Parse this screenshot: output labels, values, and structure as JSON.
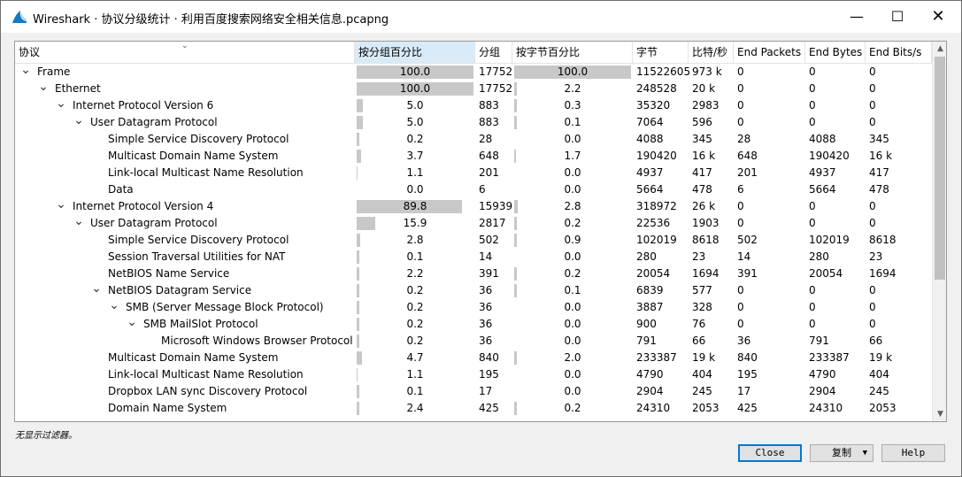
{
  "window": {
    "title": "Wireshark · 协议分级统计 · 利用百度搜索网络安全相关信息.pcapng",
    "controls": {
      "minimize": "—",
      "maximize": "☐",
      "close": "✕"
    }
  },
  "columns": [
    "协议",
    "按分组百分比",
    "分组",
    "按字节百分比",
    "字节",
    "比特/秒",
    "End Packets",
    "End Bytes",
    "End Bits/s"
  ],
  "sorted_column": "按分组百分比",
  "rows": [
    {
      "name": "Frame",
      "level": 0,
      "expander": "expanded",
      "pct_packets": "100.0",
      "pct_packets_value": 100,
      "packets": "17752",
      "pct_bytes": "100.0",
      "pct_bytes_value": 100,
      "bytes": "11522605",
      "bits_s": "973 k",
      "end_packets": "0",
      "end_bytes": "0",
      "end_bits_s": "0"
    },
    {
      "name": "Ethernet",
      "level": 1,
      "expander": "expanded",
      "pct_packets": "100.0",
      "pct_packets_value": 100,
      "packets": "17752",
      "pct_bytes": "2.2",
      "pct_bytes_value": 2.2,
      "bytes": "248528",
      "bits_s": "20 k",
      "end_packets": "0",
      "end_bytes": "0",
      "end_bits_s": "0"
    },
    {
      "name": "Internet Protocol Version 6",
      "level": 2,
      "expander": "expanded",
      "pct_packets": "5.0",
      "pct_packets_value": 5.0,
      "packets": "883",
      "pct_bytes": "0.3",
      "pct_bytes_value": 0.3,
      "bytes": "35320",
      "bits_s": "2983",
      "end_packets": "0",
      "end_bytes": "0",
      "end_bits_s": "0"
    },
    {
      "name": "User Datagram Protocol",
      "level": 3,
      "expander": "expanded",
      "pct_packets": "5.0",
      "pct_packets_value": 5.0,
      "packets": "883",
      "pct_bytes": "0.1",
      "pct_bytes_value": 0.1,
      "bytes": "7064",
      "bits_s": "596",
      "end_packets": "0",
      "end_bytes": "0",
      "end_bits_s": "0"
    },
    {
      "name": "Simple Service Discovery Protocol",
      "level": 4,
      "expander": "none",
      "pct_packets": "0.2",
      "pct_packets_value": 0.2,
      "packets": "28",
      "pct_bytes": "0.0",
      "pct_bytes_value": 0.0,
      "bytes": "4088",
      "bits_s": "345",
      "end_packets": "28",
      "end_bytes": "4088",
      "end_bits_s": "345"
    },
    {
      "name": "Multicast Domain Name System",
      "level": 4,
      "expander": "none",
      "pct_packets": "3.7",
      "pct_packets_value": 3.7,
      "packets": "648",
      "pct_bytes": "1.7",
      "pct_bytes_value": 1.7,
      "bytes": "190420",
      "bits_s": "16 k",
      "end_packets": "648",
      "end_bytes": "190420",
      "end_bits_s": "16 k"
    },
    {
      "name": "Link-local Multicast Name Resolution",
      "level": 4,
      "expander": "none",
      "pct_packets": "1.1",
      "pct_packets_value": 1.1,
      "packets": "201",
      "pct_bytes": "0.0",
      "pct_bytes_value": 0.0,
      "bytes": "4937",
      "bits_s": "417",
      "end_packets": "201",
      "end_bytes": "4937",
      "end_bits_s": "417"
    },
    {
      "name": "Data",
      "level": 4,
      "expander": "none",
      "pct_packets": "0.0",
      "pct_packets_value": 0.0,
      "packets": "6",
      "pct_bytes": "0.0",
      "pct_bytes_value": 0.0,
      "bytes": "5664",
      "bits_s": "478",
      "end_packets": "6",
      "end_bytes": "5664",
      "end_bits_s": "478"
    },
    {
      "name": "Internet Protocol Version 4",
      "level": 2,
      "expander": "expanded",
      "pct_packets": "89.8",
      "pct_packets_value": 89.8,
      "packets": "15939",
      "pct_bytes": "2.8",
      "pct_bytes_value": 2.8,
      "bytes": "318972",
      "bits_s": "26 k",
      "end_packets": "0",
      "end_bytes": "0",
      "end_bits_s": "0"
    },
    {
      "name": "User Datagram Protocol",
      "level": 3,
      "expander": "expanded",
      "pct_packets": "15.9",
      "pct_packets_value": 15.9,
      "packets": "2817",
      "pct_bytes": "0.2",
      "pct_bytes_value": 0.2,
      "bytes": "22536",
      "bits_s": "1903",
      "end_packets": "0",
      "end_bytes": "0",
      "end_bits_s": "0"
    },
    {
      "name": "Simple Service Discovery Protocol",
      "level": 4,
      "expander": "none",
      "pct_packets": "2.8",
      "pct_packets_value": 2.8,
      "packets": "502",
      "pct_bytes": "0.9",
      "pct_bytes_value": 0.9,
      "bytes": "102019",
      "bits_s": "8618",
      "end_packets": "502",
      "end_bytes": "102019",
      "end_bits_s": "8618"
    },
    {
      "name": "Session Traversal Utilities for NAT",
      "level": 4,
      "expander": "none",
      "pct_packets": "0.1",
      "pct_packets_value": 0.1,
      "packets": "14",
      "pct_bytes": "0.0",
      "pct_bytes_value": 0.0,
      "bytes": "280",
      "bits_s": "23",
      "end_packets": "14",
      "end_bytes": "280",
      "end_bits_s": "23"
    },
    {
      "name": "NetBIOS Name Service",
      "level": 4,
      "expander": "none",
      "pct_packets": "2.2",
      "pct_packets_value": 2.2,
      "packets": "391",
      "pct_bytes": "0.2",
      "pct_bytes_value": 0.2,
      "bytes": "20054",
      "bits_s": "1694",
      "end_packets": "391",
      "end_bytes": "20054",
      "end_bits_s": "1694"
    },
    {
      "name": "NetBIOS Datagram Service",
      "level": 4,
      "expander": "expanded",
      "pct_packets": "0.2",
      "pct_packets_value": 0.2,
      "packets": "36",
      "pct_bytes": "0.1",
      "pct_bytes_value": 0.1,
      "bytes": "6839",
      "bits_s": "577",
      "end_packets": "0",
      "end_bytes": "0",
      "end_bits_s": "0"
    },
    {
      "name": "SMB (Server Message Block Protocol)",
      "level": 5,
      "expander": "expanded",
      "pct_packets": "0.2",
      "pct_packets_value": 0.2,
      "packets": "36",
      "pct_bytes": "0.0",
      "pct_bytes_value": 0.0,
      "bytes": "3887",
      "bits_s": "328",
      "end_packets": "0",
      "end_bytes": "0",
      "end_bits_s": "0"
    },
    {
      "name": "SMB MailSlot Protocol",
      "level": 6,
      "expander": "expanded",
      "pct_packets": "0.2",
      "pct_packets_value": 0.2,
      "packets": "36",
      "pct_bytes": "0.0",
      "pct_bytes_value": 0.0,
      "bytes": "900",
      "bits_s": "76",
      "end_packets": "0",
      "end_bytes": "0",
      "end_bits_s": "0"
    },
    {
      "name": "Microsoft Windows Browser Protocol",
      "level": 7,
      "expander": "none",
      "pct_packets": "0.2",
      "pct_packets_value": 0.2,
      "packets": "36",
      "pct_bytes": "0.0",
      "pct_bytes_value": 0.0,
      "bytes": "791",
      "bits_s": "66",
      "end_packets": "36",
      "end_bytes": "791",
      "end_bits_s": "66"
    },
    {
      "name": "Multicast Domain Name System",
      "level": 4,
      "expander": "none",
      "pct_packets": "4.7",
      "pct_packets_value": 4.7,
      "packets": "840",
      "pct_bytes": "2.0",
      "pct_bytes_value": 2.0,
      "bytes": "233387",
      "bits_s": "19 k",
      "end_packets": "840",
      "end_bytes": "233387",
      "end_bits_s": "19 k"
    },
    {
      "name": "Link-local Multicast Name Resolution",
      "level": 4,
      "expander": "none",
      "pct_packets": "1.1",
      "pct_packets_value": 1.1,
      "packets": "195",
      "pct_bytes": "0.0",
      "pct_bytes_value": 0.0,
      "bytes": "4790",
      "bits_s": "404",
      "end_packets": "195",
      "end_bytes": "4790",
      "end_bits_s": "404"
    },
    {
      "name": "Dropbox LAN sync Discovery Protocol",
      "level": 4,
      "expander": "none",
      "pct_packets": "0.1",
      "pct_packets_value": 0.1,
      "packets": "17",
      "pct_bytes": "0.0",
      "pct_bytes_value": 0.0,
      "bytes": "2904",
      "bits_s": "245",
      "end_packets": "17",
      "end_bytes": "2904",
      "end_bits_s": "245"
    },
    {
      "name": "Domain Name System",
      "level": 4,
      "expander": "none",
      "pct_packets": "2.4",
      "pct_packets_value": 2.4,
      "packets": "425",
      "pct_bytes": "0.2",
      "pct_bytes_value": 0.2,
      "bytes": "24310",
      "bits_s": "2053",
      "end_packets": "425",
      "end_bytes": "24310",
      "end_bits_s": "2053"
    }
  ],
  "status_text": "无显示过滤器。",
  "buttons": {
    "close": "Close",
    "copy": "复制",
    "help": "Help"
  },
  "colors": {
    "bar": "#c8c8c8",
    "sorted_header": "#d9ebf9",
    "default_button_border": "#0078d7"
  }
}
